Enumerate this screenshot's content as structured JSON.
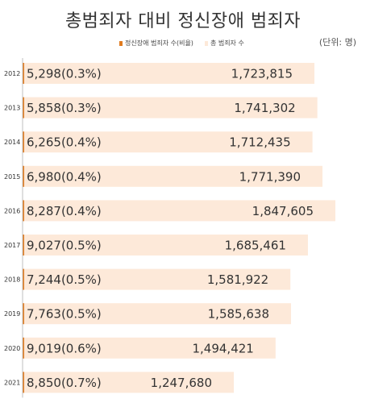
{
  "title": "총범죄자 대비 정신장애 범죄자",
  "unit_label": "(단위: 명)",
  "colors": {
    "mental": "#e07b1f",
    "total": "#fde9d9",
    "axis": "#bfbfbf"
  },
  "chart_data": {
    "type": "bar",
    "orientation": "horizontal",
    "categories": [
      "2012",
      "2013",
      "2014",
      "2015",
      "2016",
      "2017",
      "2018",
      "2019",
      "2020",
      "2021"
    ],
    "series": [
      {
        "name": "정신장애 범죄자 수(비율)",
        "values": [
          5298,
          5858,
          6265,
          6980,
          8287,
          9027,
          7244,
          7763,
          9019,
          8850
        ],
        "labels": [
          "5,298(0.3%)",
          "5,858(0.3%)",
          "6,265(0.4%)",
          "6,980(0.4%)",
          "8,287(0.4%)",
          "9,027(0.5%)",
          "7,244(0.5%)",
          "7,763(0.5%)",
          "9,019(0.6%)",
          "8,850(0.7%)"
        ]
      },
      {
        "name": "총 범죄자 수",
        "values": [
          1723815,
          1741302,
          1712435,
          1771390,
          1847605,
          1685461,
          1581922,
          1585638,
          1494421,
          1247680
        ],
        "labels": [
          "1,723,815",
          "1,741,302",
          "1,712,435",
          "1,771,390",
          "1,847,605",
          "1,685,461",
          "1,581,922",
          "1,585,638",
          "1,494,421",
          "1,247,680"
        ]
      }
    ],
    "xlim": [
      0,
      1847605
    ],
    "legend_position": "top",
    "grid": false
  }
}
